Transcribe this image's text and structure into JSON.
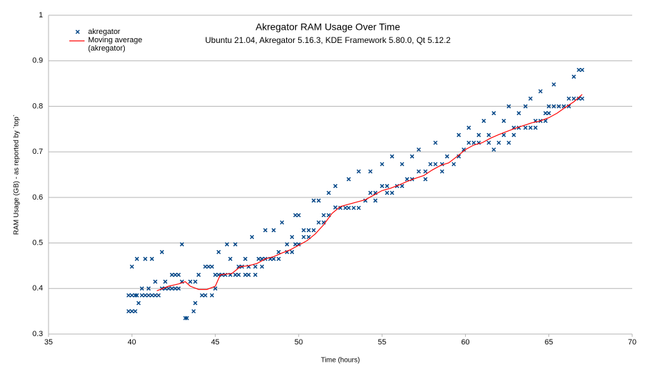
{
  "chart_data": {
    "type": "scatter",
    "title": "Akregator RAM Usage Over Time",
    "subtitle": "Ubuntu 21.04, Akregator 5.16.3, KDE Framework 5.80.0, Qt 5.12.2",
    "x_label": "Time (hours)",
    "y_label": "RAM Usage (GB) - as reported by `top`",
    "xlim": [
      35,
      70
    ],
    "xticks": [
      35,
      40,
      45,
      50,
      55,
      60,
      65,
      70
    ],
    "ylim": [
      0.3,
      1
    ],
    "yticks": [
      0.3,
      0.4,
      0.5,
      0.6,
      0.7,
      0.8,
      0.9,
      1
    ],
    "grid": true,
    "legend": "top-left",
    "series": [
      {
        "name": "akregator",
        "kind": "scatter",
        "color": "#004586",
        "x": [
          39.8,
          39.8,
          40.0,
          40.0,
          40.0,
          40.2,
          40.2,
          40.3,
          40.3,
          40.4,
          40.6,
          40.6,
          40.8,
          40.8,
          41.0,
          41.0,
          41.2,
          41.2,
          41.4,
          41.4,
          41.6,
          41.8,
          41.8,
          42.0,
          42.0,
          42.2,
          42.4,
          42.4,
          42.6,
          42.6,
          42.8,
          42.8,
          43.0,
          43.0,
          43.2,
          43.3,
          43.5,
          43.7,
          43.8,
          43.8,
          44.0,
          44.2,
          44.4,
          44.4,
          44.6,
          44.8,
          44.8,
          45.0,
          45.0,
          45.2,
          45.2,
          45.4,
          45.6,
          45.7,
          45.9,
          45.9,
          46.2,
          46.2,
          46.4,
          46.4,
          46.6,
          46.8,
          46.8,
          47.0,
          47.0,
          47.2,
          47.4,
          47.4,
          47.6,
          47.8,
          47.8,
          48.0,
          48.0,
          48.3,
          48.5,
          48.5,
          48.8,
          48.8,
          49.0,
          49.3,
          49.3,
          49.6,
          49.6,
          49.8,
          49.8,
          50.0,
          50.0,
          50.3,
          50.3,
          50.6,
          50.6,
          50.9,
          50.9,
          51.2,
          51.2,
          51.5,
          51.5,
          51.8,
          51.8,
          52.2,
          52.2,
          52.5,
          52.8,
          53.0,
          53.0,
          53.3,
          53.6,
          53.6,
          54.0,
          54.3,
          54.3,
          54.6,
          54.6,
          55.0,
          55.0,
          55.3,
          55.3,
          55.6,
          55.6,
          55.9,
          56.2,
          56.2,
          56.5,
          56.8,
          56.8,
          57.2,
          57.2,
          57.6,
          57.6,
          57.9,
          58.2,
          58.2,
          58.6,
          58.6,
          58.9,
          59.3,
          59.6,
          59.6,
          59.9,
          60.2,
          60.2,
          60.5,
          60.8,
          60.8,
          61.1,
          61.4,
          61.4,
          61.7,
          61.7,
          62.0,
          62.3,
          62.3,
          62.6,
          62.6,
          62.9,
          62.9,
          63.2,
          63.2,
          63.6,
          63.6,
          63.9,
          63.9,
          64.2,
          64.2,
          64.5,
          64.5,
          64.8,
          64.8,
          65.0,
          65.0,
          65.3,
          65.3,
          65.6,
          65.9,
          66.2,
          66.2,
          66.5,
          66.5,
          66.8,
          66.8,
          67.0,
          67.0
        ],
        "values": [
          0.35,
          0.385,
          0.35,
          0.448,
          0.385,
          0.35,
          0.385,
          0.465,
          0.385,
          0.368,
          0.4,
          0.385,
          0.465,
          0.385,
          0.385,
          0.4,
          0.465,
          0.385,
          0.385,
          0.415,
          0.385,
          0.48,
          0.4,
          0.415,
          0.4,
          0.4,
          0.43,
          0.4,
          0.43,
          0.4,
          0.43,
          0.4,
          0.497,
          0.415,
          0.335,
          0.335,
          0.415,
          0.35,
          0.368,
          0.415,
          0.43,
          0.385,
          0.385,
          0.448,
          0.448,
          0.385,
          0.448,
          0.4,
          0.43,
          0.48,
          0.43,
          0.43,
          0.43,
          0.497,
          0.43,
          0.465,
          0.497,
          0.43,
          0.43,
          0.448,
          0.448,
          0.465,
          0.43,
          0.43,
          0.448,
          0.513,
          0.448,
          0.43,
          0.465,
          0.465,
          0.448,
          0.528,
          0.465,
          0.465,
          0.528,
          0.465,
          0.465,
          0.48,
          0.545,
          0.48,
          0.497,
          0.48,
          0.513,
          0.561,
          0.497,
          0.497,
          0.561,
          0.528,
          0.513,
          0.528,
          0.513,
          0.593,
          0.528,
          0.593,
          0.545,
          0.545,
          0.561,
          0.61,
          0.561,
          0.625,
          0.578,
          0.577,
          0.577,
          0.64,
          0.577,
          0.577,
          0.657,
          0.577,
          0.593,
          0.657,
          0.61,
          0.593,
          0.61,
          0.673,
          0.625,
          0.61,
          0.625,
          0.69,
          0.61,
          0.625,
          0.673,
          0.625,
          0.64,
          0.69,
          0.64,
          0.705,
          0.657,
          0.657,
          0.64,
          0.673,
          0.72,
          0.673,
          0.657,
          0.673,
          0.69,
          0.673,
          0.737,
          0.69,
          0.705,
          0.753,
          0.72,
          0.72,
          0.737,
          0.72,
          0.768,
          0.72,
          0.737,
          0.785,
          0.705,
          0.72,
          0.737,
          0.768,
          0.8,
          0.72,
          0.753,
          0.737,
          0.785,
          0.753,
          0.8,
          0.753,
          0.817,
          0.753,
          0.753,
          0.768,
          0.833,
          0.768,
          0.785,
          0.768,
          0.8,
          0.785,
          0.848,
          0.8,
          0.8,
          0.8,
          0.8,
          0.817,
          0.865,
          0.817,
          0.88,
          0.817,
          0.88,
          0.817
        ]
      },
      {
        "name": "Moving average (akregator)",
        "kind": "line",
        "color": "#ff0000",
        "x": [
          41.5,
          42.2,
          42.8,
          43.2,
          43.5,
          44.0,
          44.5,
          45.0,
          45.3,
          46.0,
          46.5,
          47.0,
          47.5,
          48.0,
          48.5,
          49.0,
          49.5,
          50.0,
          50.5,
          51.0,
          51.5,
          52.0,
          52.5,
          53.0,
          53.5,
          54.0,
          54.5,
          55.0,
          55.5,
          56.0,
          56.5,
          57.0,
          57.5,
          58.0,
          58.5,
          59.0,
          59.5,
          60.0,
          60.5,
          61.0,
          61.5,
          62.0,
          62.5,
          63.0,
          63.5,
          64.0,
          64.5,
          65.0,
          65.5,
          66.0,
          66.5,
          67.0
        ],
        "values": [
          0.395,
          0.405,
          0.41,
          0.415,
          0.405,
          0.398,
          0.398,
          0.405,
          0.43,
          0.433,
          0.448,
          0.45,
          0.455,
          0.465,
          0.47,
          0.478,
          0.485,
          0.495,
          0.505,
          0.52,
          0.54,
          0.565,
          0.58,
          0.585,
          0.59,
          0.595,
          0.605,
          0.615,
          0.62,
          0.627,
          0.635,
          0.642,
          0.648,
          0.66,
          0.67,
          0.676,
          0.69,
          0.705,
          0.715,
          0.72,
          0.73,
          0.738,
          0.745,
          0.752,
          0.758,
          0.764,
          0.768,
          0.775,
          0.785,
          0.798,
          0.81,
          0.826
        ]
      }
    ]
  }
}
